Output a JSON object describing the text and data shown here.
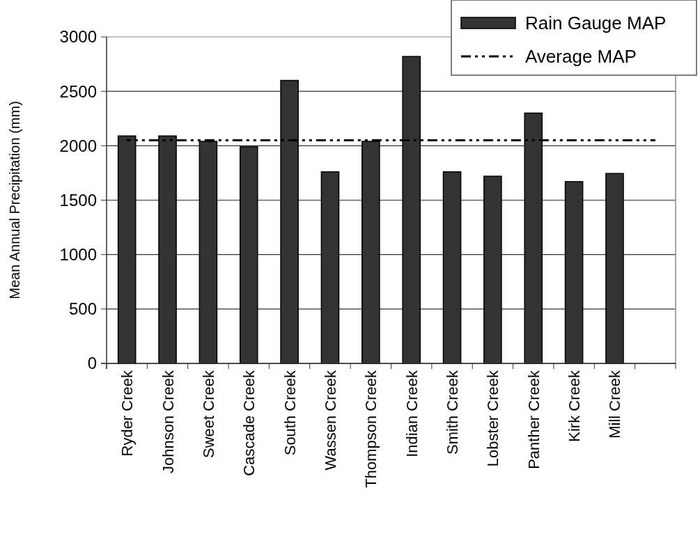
{
  "chart_data": {
    "type": "bar",
    "ylabel": "Mean Annual Precipitation (mm)",
    "categories": [
      "Ryder Creek",
      "Johnson Creek",
      "Sweet Creek",
      "Cascade Creek",
      "South Creek",
      "Wassen Creek",
      "Thompson Creek",
      "Indian Creek",
      "Smith Creek",
      "Lobster Creek",
      "Panther Creek",
      "Kirk Creek",
      "Mill Creek",
      null
    ],
    "series": [
      {
        "name": "Rain Gauge MAP",
        "color": "#333333",
        "values": [
          2090,
          2090,
          2040,
          1990,
          2600,
          1760,
          2040,
          2820,
          1760,
          1720,
          2300,
          1670,
          1745,
          null
        ]
      },
      {
        "name": "Average MAP",
        "type": "line",
        "color": "#000000",
        "line_style": "dashed",
        "marker": "none",
        "values": [
          2050,
          2050,
          2050,
          2050,
          2050,
          2050,
          2050,
          2050,
          2050,
          2050,
          2050,
          2050,
          2050,
          2050
        ]
      }
    ],
    "ylim": [
      0,
      3000
    ],
    "yticks": [
      0,
      500,
      1000,
      1500,
      2000,
      2500,
      3000
    ],
    "grid": "y",
    "legend": "top right"
  }
}
